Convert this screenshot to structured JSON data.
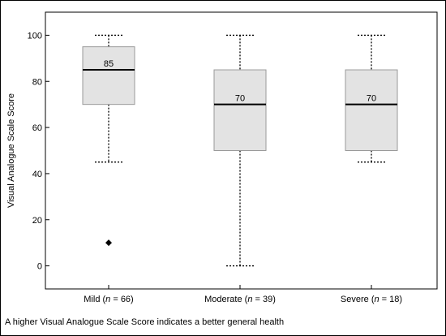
{
  "chart_data": {
    "type": "box",
    "ylabel": "Visual Analogue Scale Score",
    "ylim": [
      -10,
      110
    ],
    "yticks": [
      0,
      20,
      40,
      60,
      80,
      100
    ],
    "grid": false,
    "groups": [
      {
        "name": "Mild",
        "n_label": "n",
        "n_value": "= 66)",
        "min": 45,
        "q1": 70,
        "median": 85,
        "q3": 95,
        "max": 100,
        "median_label": "85",
        "outliers": [
          10
        ]
      },
      {
        "name": "Moderate",
        "n_label": "n",
        "n_value": "= 39)",
        "min": 0,
        "q1": 50,
        "median": 70,
        "q3": 85,
        "max": 100,
        "median_label": "70",
        "outliers": []
      },
      {
        "name": "Severe",
        "n_label": "n",
        "n_value": "= 18)",
        "min": 45,
        "q1": 50,
        "median": 70,
        "q3": 85,
        "max": 100,
        "median_label": "70",
        "outliers": []
      }
    ],
    "colors": {
      "box_fill": "#e3e3e3",
      "box_stroke": "#9a9a9a",
      "median": "#000000",
      "whisker": "#000000",
      "outlier": "#000000"
    }
  },
  "footnote": "A higher Visual Analogue Scale Score indicates a better general health"
}
